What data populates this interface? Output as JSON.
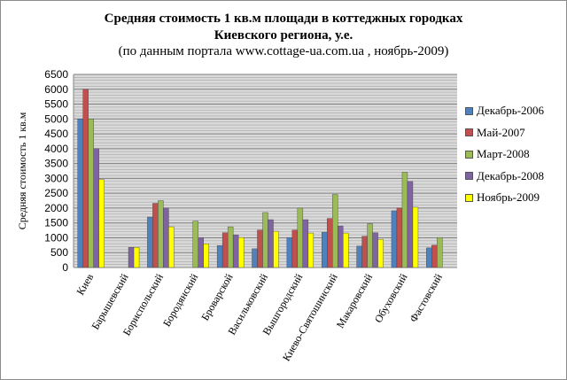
{
  "chart_data": {
    "type": "bar",
    "title": "Средняя стоимость 1 кв.м площади в коттеджных городках",
    "title_line2": "Киевского региона, у.е.",
    "subtitle": "(по данным портала www.cottage-ua.com.ua , ноябрь-2009)",
    "xlabel": "",
    "ylabel": "Средняя стоимость 1 кв.м",
    "ylim": [
      0,
      6500
    ],
    "yticks": [
      0,
      500,
      1000,
      1500,
      2000,
      2500,
      3000,
      3500,
      4000,
      4500,
      5000,
      5500,
      6000,
      6500
    ],
    "grid": true,
    "legend_position": "right",
    "categories": [
      "Киев",
      "Барышевский",
      "Бориспольский",
      "Бородянский",
      "Броварской",
      "Васильковский",
      "Вышгородский",
      "Киево-Святошинский",
      "Макаровский",
      "Обуховский",
      "Фастовский"
    ],
    "series": [
      {
        "name": "Декабрь-2006",
        "color": "#4f81bd",
        "values": [
          5000,
          null,
          1700,
          null,
          740,
          630,
          1010,
          1190,
          720,
          1910,
          660
        ]
      },
      {
        "name": "Май-2007",
        "color": "#c0504d",
        "values": [
          6000,
          null,
          2160,
          null,
          1170,
          1260,
          1260,
          1650,
          1050,
          2000,
          750
        ]
      },
      {
        "name": "Март-2008",
        "color": "#9bbb59",
        "values": [
          5000,
          null,
          2250,
          1560,
          1370,
          1850,
          2000,
          2460,
          1470,
          3210,
          1010
        ]
      },
      {
        "name": "Декабрь-2008",
        "color": "#8064a2",
        "values": [
          4000,
          680,
          2000,
          1010,
          1100,
          1610,
          1610,
          1400,
          1170,
          2900,
          null
        ]
      },
      {
        "name": "Ноябрь-2009",
        "color": "#ffff00",
        "values": [
          2960,
          680,
          1370,
          800,
          1010,
          1220,
          1160,
          1160,
          950,
          2030,
          null
        ]
      }
    ]
  }
}
